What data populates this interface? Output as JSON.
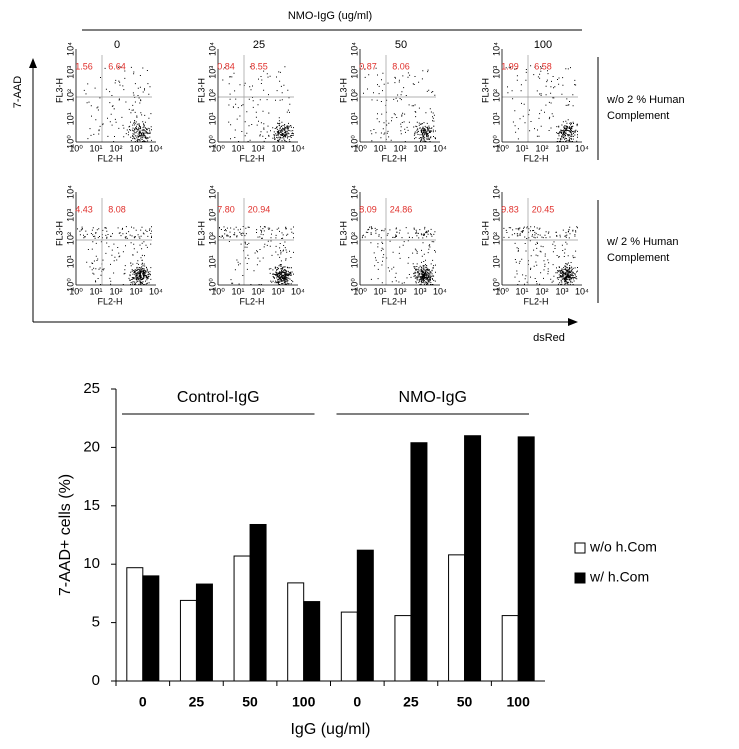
{
  "flow_figure": {
    "title": "NMO-IgG  (ug/ml)",
    "columns": [
      "0",
      "25",
      "50",
      "100"
    ],
    "y_axis_label": "7-AAD",
    "x_axis_label": "dsRed",
    "panel_y_label": "FL3-H",
    "panel_x_label": "FL2-H",
    "panel_ticks": [
      "10⁰",
      "10¹",
      "10²",
      "10³",
      "10⁴"
    ],
    "rows": [
      {
        "label_lines": [
          "w/o 2 % Human",
          "Complement"
        ],
        "quadrants": [
          [
            "1.56",
            "6.64"
          ],
          [
            "0.84",
            "8.55"
          ],
          [
            "0.87",
            "8.06"
          ],
          [
            "1.99",
            "6.58"
          ]
        ]
      },
      {
        "label_lines": [
          "w/  2 % Human",
          "Complement"
        ],
        "quadrants": [
          [
            "4.43",
            "8.08"
          ],
          [
            "7.80",
            "20.94"
          ],
          [
            "8.09",
            "24.86"
          ],
          [
            "9.83",
            "20.45"
          ]
        ]
      }
    ]
  },
  "chart_data": {
    "type": "bar",
    "categories": [
      "0",
      "25",
      "50",
      "100",
      "0",
      "25",
      "50",
      "100"
    ],
    "groups": [
      {
        "name": "Control-IgG"
      },
      {
        "name": "NMO-IgG"
      }
    ],
    "x_label": "IgG (ug/ml)",
    "y_label": "7-AAD+ cells (%)",
    "ylim": [
      0,
      25
    ],
    "yticks": [
      0,
      5,
      10,
      15,
      20,
      25
    ],
    "series": [
      {
        "name": "w/o h.Com",
        "color": "#ffffff",
        "values": [
          9.7,
          6.9,
          10.7,
          8.4,
          5.9,
          5.6,
          10.8,
          5.6
        ]
      },
      {
        "name": "w/ h.Com",
        "color": "#000000",
        "values": [
          9.0,
          8.3,
          13.4,
          6.8,
          11.2,
          20.4,
          21.0,
          20.9
        ]
      }
    ]
  }
}
